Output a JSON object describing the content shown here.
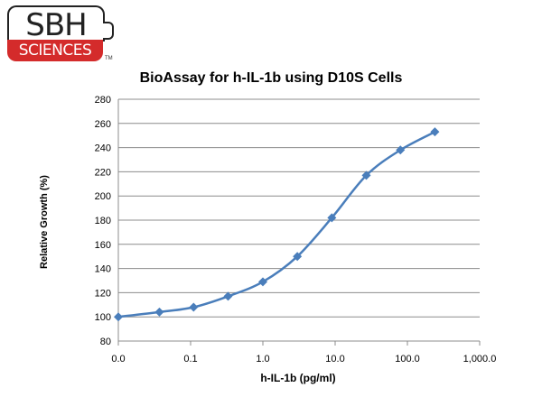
{
  "logo": {
    "brand_top": "SBH",
    "brand_bottom": "SCIENCES",
    "trademark": "TM",
    "colors": {
      "red": "#d42b2b",
      "dark": "#222222"
    }
  },
  "chart_data": {
    "type": "line",
    "title": "BioAssay for h-IL-1b using D10S Cells",
    "xlabel": "h-IL-1b (pg/ml)",
    "ylabel": "Relative Growth (%)",
    "x_scale": "log",
    "xlim": [
      0.01,
      1000
    ],
    "ylim": [
      80,
      280
    ],
    "x_tick_labels": [
      "0.0",
      "0.1",
      "1.0",
      "10.0",
      "100.0",
      "1,000.0"
    ],
    "x_tick_values": [
      0.01,
      0.1,
      1,
      10,
      100,
      1000
    ],
    "y_ticks": [
      80,
      100,
      120,
      140,
      160,
      180,
      200,
      220,
      240,
      260,
      280
    ],
    "grid": "horizontal",
    "series": [
      {
        "color": "#4a7ebb",
        "marker": "diamond",
        "points": [
          {
            "x": 0.01,
            "y": 100
          },
          {
            "x": 0.037,
            "y": 104
          },
          {
            "x": 0.11,
            "y": 108
          },
          {
            "x": 0.33,
            "y": 117
          },
          {
            "x": 1.0,
            "y": 129
          },
          {
            "x": 3.0,
            "y": 150
          },
          {
            "x": 9.0,
            "y": 182
          },
          {
            "x": 27,
            "y": 217
          },
          {
            "x": 80,
            "y": 238
          },
          {
            "x": 240,
            "y": 253
          }
        ]
      }
    ]
  }
}
